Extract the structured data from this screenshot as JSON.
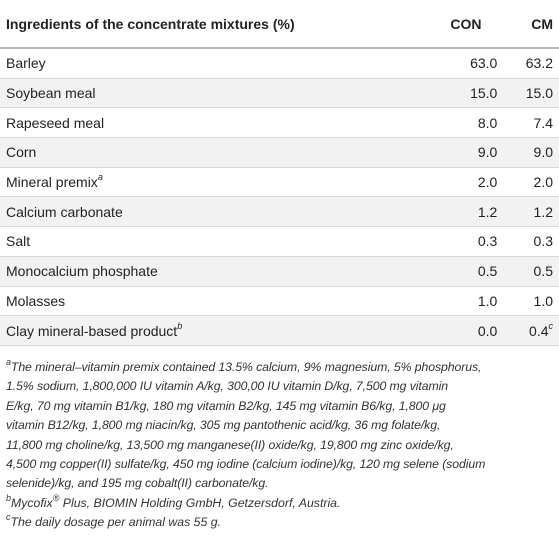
{
  "table": {
    "headers": [
      "Ingredients of the concentrate mixtures (%)",
      "CON",
      "CM"
    ],
    "rows": [
      {
        "name": "Barley",
        "sup": "",
        "con": "63.0",
        "cm": "63.2",
        "cm_sup": ""
      },
      {
        "name": "Soybean meal",
        "sup": "",
        "con": "15.0",
        "cm": "15.0",
        "cm_sup": ""
      },
      {
        "name": "Rapeseed meal",
        "sup": "",
        "con": "8.0",
        "cm": "7.4",
        "cm_sup": ""
      },
      {
        "name": "Corn",
        "sup": "",
        "con": "9.0",
        "cm": "9.0",
        "cm_sup": ""
      },
      {
        "name": "Mineral premix",
        "sup": "a",
        "con": "2.0",
        "cm": "2.0",
        "cm_sup": ""
      },
      {
        "name": "Calcium carbonate",
        "sup": "",
        "con": "1.2",
        "cm": "1.2",
        "cm_sup": ""
      },
      {
        "name": "Salt",
        "sup": "",
        "con": "0.3",
        "cm": "0.3",
        "cm_sup": ""
      },
      {
        "name": "Monocalcium phosphate",
        "sup": "",
        "con": "0.5",
        "cm": "0.5",
        "cm_sup": ""
      },
      {
        "name": "Molasses",
        "sup": "",
        "con": "1.0",
        "cm": "1.0",
        "cm_sup": ""
      },
      {
        "name": "Clay mineral-based product",
        "sup": "b",
        "con": "0.0",
        "cm": "0.4",
        "cm_sup": "c"
      }
    ]
  },
  "footnotes": {
    "a": {
      "marker": "a",
      "lines": [
        "The mineral–vitamin premix contained 13.5% calcium, 9% magnesium, 5% phosphorus,",
        "1.5% sodium, 1,800,000 IU vitamin A/kg, 300,00 IU vitamin D/kg, 7,500 mg vitamin",
        "E/kg, 70 mg vitamin B1/kg, 180 mg vitamin B2/kg, 145 mg vitamin B6/kg, 1,800 μg",
        "vitamin B12/kg, 1,800 mg niacin/kg, 305 mg pantothenic acid/kg, 36 mg folate/kg,",
        "11,800 mg choline/kg, 13,500 mg manganese(II) oxide/kg, 19,800 mg zinc oxide/kg,",
        "4,500 mg copper(II) sulfate/kg, 450 mg iodine (calcium iodine)/kg, 120 mg selene (sodium",
        "selenide)/kg, and 195 mg cobalt(II) carbonate/kg."
      ]
    },
    "b": {
      "marker": "b",
      "product": "Mycofix",
      "reg": "®",
      "rest": " Plus, BIOMIN Holding GmbH, Getzersdorf, Austria."
    },
    "c": {
      "marker": "c",
      "text": "The daily dosage per animal was 55 g."
    }
  }
}
